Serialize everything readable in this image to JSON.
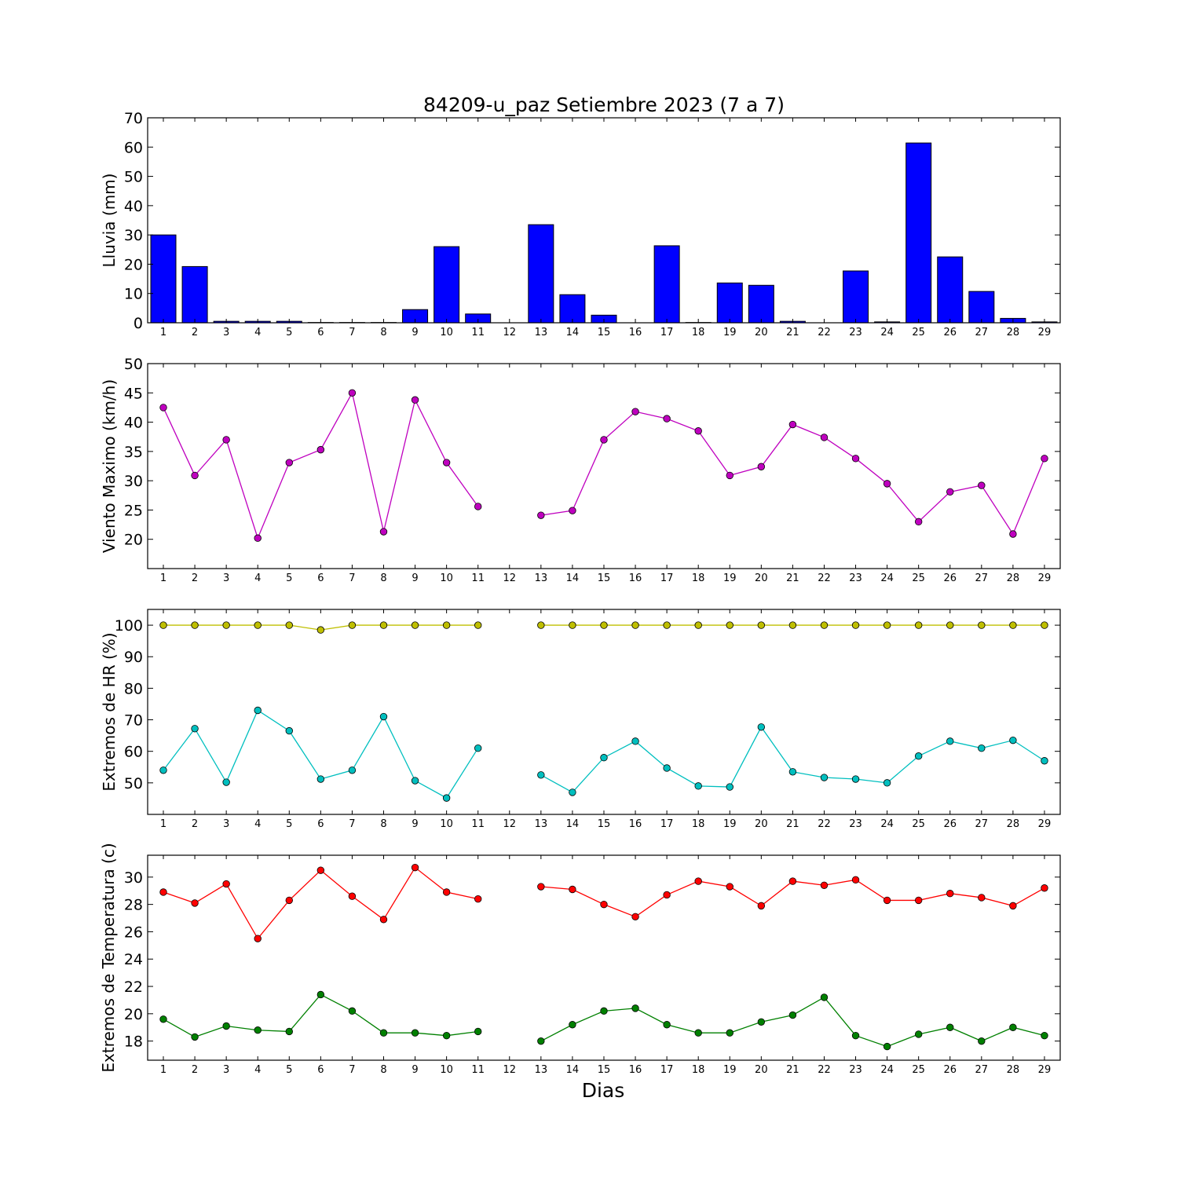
{
  "figure": {
    "title": "84209-u_paz Setiembre 2023  (7 a 7)",
    "xlabel": "Dias"
  },
  "chart_data": [
    {
      "type": "bar",
      "ylabel": "Lluvia (mm)",
      "ylim": [
        0,
        70
      ],
      "yticks": [
        0,
        10,
        20,
        30,
        40,
        50,
        60,
        70
      ],
      "categories": [
        1,
        2,
        3,
        4,
        5,
        6,
        7,
        8,
        9,
        10,
        11,
        12,
        13,
        14,
        15,
        16,
        17,
        18,
        19,
        20,
        21,
        22,
        23,
        24,
        25,
        26,
        27,
        28,
        29
      ],
      "values": [
        30.0,
        19.2,
        0.5,
        0.5,
        0.5,
        0.1,
        0.1,
        0.1,
        4.5,
        26.0,
        3.0,
        0.0,
        33.5,
        9.6,
        2.6,
        0.0,
        26.3,
        0.1,
        13.6,
        12.8,
        0.5,
        0.0,
        17.7,
        0.3,
        61.4,
        22.5,
        10.7,
        1.5,
        0.3
      ],
      "color": "#0000ff",
      "grid": false
    },
    {
      "type": "line",
      "ylabel": "Viento Maximo (km/h)",
      "ylim": [
        15,
        50
      ],
      "yticks": [
        20,
        25,
        30,
        35,
        40,
        45,
        50
      ],
      "x": [
        1,
        2,
        3,
        4,
        5,
        6,
        7,
        8,
        9,
        10,
        11,
        12,
        13,
        14,
        15,
        16,
        17,
        18,
        19,
        20,
        21,
        22,
        23,
        24,
        25,
        26,
        27,
        28,
        29
      ],
      "series": [
        {
          "color": "#bf00bf",
          "values": [
            42.5,
            30.9,
            37.0,
            20.2,
            33.1,
            35.3,
            45.0,
            21.3,
            43.8,
            33.1,
            25.6,
            null,
            24.1,
            24.9,
            37.0,
            41.8,
            40.6,
            38.5,
            30.9,
            32.4,
            39.6,
            37.4,
            33.8,
            29.5,
            23.0,
            28.1,
            29.2,
            20.9,
            33.8
          ]
        }
      ],
      "grid": false
    },
    {
      "type": "line",
      "ylabel": "Extremos de HR (%)",
      "ylim": [
        40,
        105
      ],
      "yticks": [
        50,
        60,
        70,
        80,
        90,
        100
      ],
      "x": [
        1,
        2,
        3,
        4,
        5,
        6,
        7,
        8,
        9,
        10,
        11,
        12,
        13,
        14,
        15,
        16,
        17,
        18,
        19,
        20,
        21,
        22,
        23,
        24,
        25,
        26,
        27,
        28,
        29
      ],
      "series": [
        {
          "color": "#bfbf00",
          "values": [
            100,
            100,
            100,
            100,
            100,
            98.5,
            100,
            100,
            100,
            100,
            100,
            null,
            100,
            100,
            100,
            100,
            100,
            100,
            100,
            100,
            100,
            100,
            100,
            100,
            100,
            100,
            100,
            100,
            100
          ]
        },
        {
          "color": "#00bfbf",
          "values": [
            54,
            67.2,
            50.2,
            73,
            66.5,
            51.2,
            54,
            71,
            50.7,
            45.2,
            61,
            null,
            52.5,
            47,
            58,
            63.2,
            54.7,
            49,
            48.7,
            67.7,
            53.5,
            51.7,
            51.2,
            50,
            58.5,
            63.2,
            61,
            63.5,
            57
          ]
        }
      ],
      "grid": false
    },
    {
      "type": "line",
      "ylabel": "Extremos de Temperatura (c)",
      "ylim": [
        16.6,
        31.6
      ],
      "yticks": [
        18,
        20,
        22,
        24,
        26,
        28,
        30
      ],
      "x": [
        1,
        2,
        3,
        4,
        5,
        6,
        7,
        8,
        9,
        10,
        11,
        12,
        13,
        14,
        15,
        16,
        17,
        18,
        19,
        20,
        21,
        22,
        23,
        24,
        25,
        26,
        27,
        28,
        29
      ],
      "series": [
        {
          "color": "#ff0000",
          "values": [
            28.9,
            28.1,
            29.5,
            25.5,
            28.3,
            30.5,
            28.6,
            26.9,
            30.7,
            28.9,
            28.4,
            null,
            29.3,
            29.1,
            28.0,
            27.1,
            28.7,
            29.7,
            29.3,
            27.9,
            29.7,
            29.4,
            29.8,
            28.3,
            28.3,
            28.8,
            28.5,
            27.9,
            29.2
          ]
        },
        {
          "color": "#008000",
          "values": [
            19.6,
            18.3,
            19.1,
            18.8,
            18.7,
            21.4,
            20.2,
            18.6,
            18.6,
            18.4,
            18.7,
            null,
            18.0,
            19.2,
            20.2,
            20.4,
            19.2,
            18.6,
            18.6,
            19.4,
            19.9,
            21.2,
            18.4,
            17.6,
            18.5,
            19.0,
            18.0,
            19.0,
            18.4
          ]
        }
      ],
      "grid": false
    }
  ]
}
